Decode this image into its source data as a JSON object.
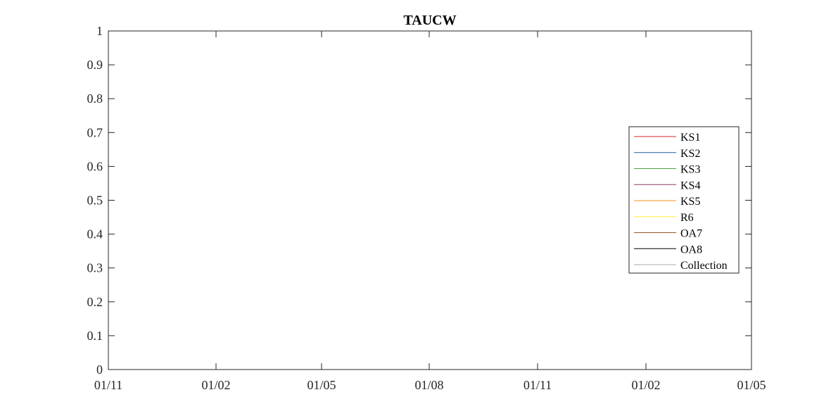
{
  "chart_data": {
    "type": "line",
    "title": "TAUCW",
    "xlabel": "",
    "ylabel": "",
    "x_tick_labels": [
      "01/11",
      "01/02",
      "01/05",
      "01/08",
      "01/11",
      "01/02",
      "01/05"
    ],
    "y_ticks": [
      0,
      0.1,
      0.2,
      0.3,
      0.4,
      0.5,
      0.6,
      0.7,
      0.8,
      0.9,
      1
    ],
    "y_tick_labels": [
      "0",
      "0.1",
      "0.2",
      "0.3",
      "0.4",
      "0.5",
      "0.6",
      "0.7",
      "0.8",
      "0.9",
      "1"
    ],
    "ylim": [
      0,
      1
    ],
    "grid": false,
    "legend_position": "right",
    "series": [
      {
        "name": "KS1",
        "color": "#d62728",
        "values": []
      },
      {
        "name": "KS2",
        "color": "#1f5fa0",
        "values": []
      },
      {
        "name": "KS3",
        "color": "#4aa04a",
        "values": []
      },
      {
        "name": "KS4",
        "color": "#8b3a62",
        "values": []
      },
      {
        "name": "KS5",
        "color": "#ff8c1a",
        "values": []
      },
      {
        "name": "R6",
        "color": "#ffee33",
        "values": []
      },
      {
        "name": "OA7",
        "color": "#8b5a2b",
        "values": []
      },
      {
        "name": "OA8",
        "color": "#000000",
        "values": []
      },
      {
        "name": "Collection",
        "color": "#aaaaaa",
        "values": []
      }
    ]
  }
}
